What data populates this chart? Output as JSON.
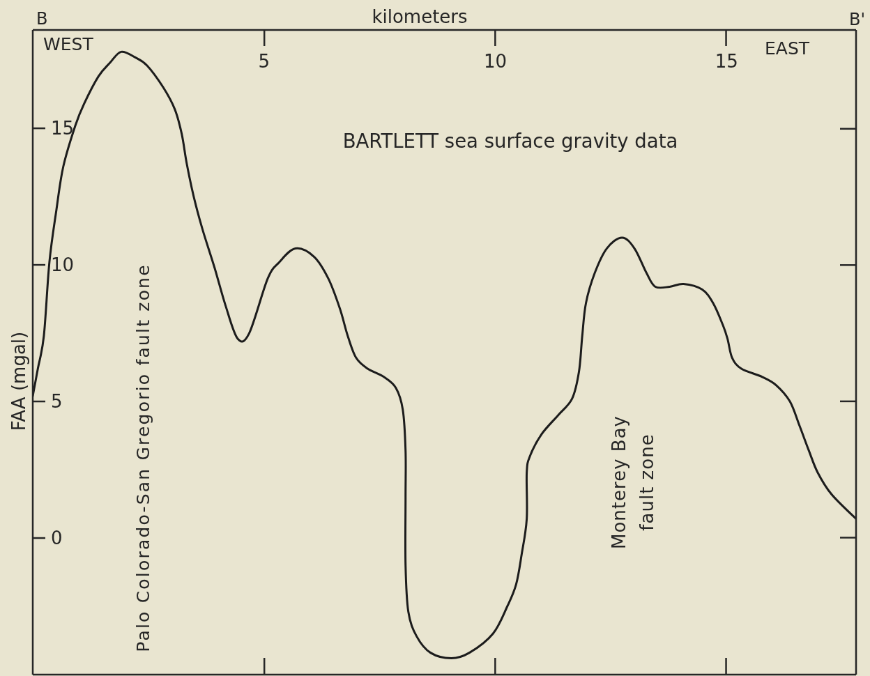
{
  "chart_data": {
    "type": "line",
    "xlabel": "kilometers",
    "ylabel": "FAA (mgal)",
    "annotations": [
      "B",
      "B'",
      "WEST",
      "EAST",
      "BARTLETT sea surface gravity data",
      "Palo Colorado-San Gregorio fault zone",
      "Monterey Bay\nfault zone"
    ],
    "x": [
      0,
      0.11,
      0.24,
      0.36,
      0.51,
      0.66,
      0.92,
      1.11,
      1.42,
      1.67,
      1.91,
      2.21,
      2.47,
      2.82,
      3.07,
      3.22,
      3.33,
      3.48,
      3.67,
      3.93,
      4.17,
      4.43,
      4.68,
      5.08,
      5.33,
      5.68,
      6.08,
      6.39,
      6.64,
      6.81,
      6.99,
      7.24,
      7.59,
      7.85,
      8.0,
      8.06,
      8.06,
      8.06,
      8.12,
      8.3,
      8.6,
      9.05,
      9.44,
      9.95,
      10.26,
      10.45,
      10.57,
      10.68,
      10.68,
      10.75,
      11.0,
      11.36,
      11.66,
      11.81,
      11.88,
      11.96,
      12.15,
      12.41,
      12.74,
      13.01,
      13.27,
      13.46,
      13.77,
      14.07,
      14.47,
      14.71,
      14.92,
      15.02,
      15.12,
      15.32,
      15.77,
      16.07,
      16.37,
      16.58,
      16.78,
      16.97,
      17.27,
      17.8
    ],
    "series": [
      {
        "color": "#1c1c1c",
        "values": [
          5.2,
          6.2,
          7.4,
          10.1,
          12.0,
          13.6,
          15.1,
          15.9,
          16.9,
          17.4,
          17.8,
          17.6,
          17.3,
          16.5,
          15.7,
          14.8,
          13.7,
          12.5,
          11.3,
          9.9,
          8.5,
          7.3,
          7.5,
          9.5,
          10.1,
          10.6,
          10.3,
          9.5,
          8.4,
          7.4,
          6.6,
          6.2,
          5.9,
          5.5,
          4.7,
          3.2,
          1.5,
          -1.0,
          -2.7,
          -3.6,
          -4.2,
          -4.4,
          -4.2,
          -3.5,
          -2.5,
          -1.7,
          -0.6,
          0.7,
          2.4,
          3.0,
          3.8,
          4.5,
          5.1,
          6.1,
          7.4,
          8.6,
          9.7,
          10.6,
          11.0,
          10.6,
          9.7,
          9.2,
          9.2,
          9.3,
          9.1,
          8.6,
          7.8,
          7.3,
          6.6,
          6.2,
          5.9,
          5.6,
          5.0,
          4.1,
          3.2,
          2.4,
          1.6,
          0.7
        ]
      }
    ],
    "xlim": [
      0,
      17.8
    ],
    "xticks": [
      5,
      10,
      15
    ],
    "ylim": [
      -5,
      18.6
    ],
    "yticks": [
      0,
      5,
      10,
      15
    ],
    "marker": "none",
    "line_style": "solid"
  }
}
